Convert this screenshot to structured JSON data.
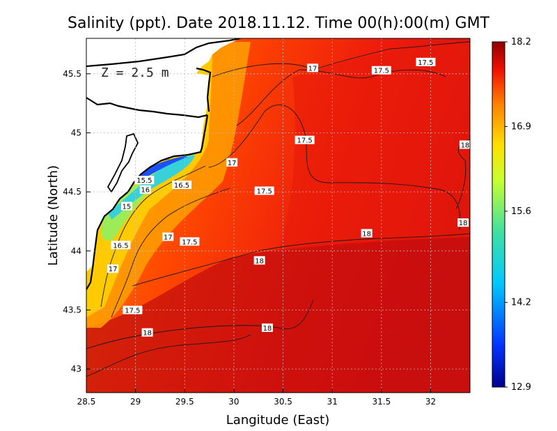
{
  "title": "Salinity (ppt). Date 2018.11.12. Time 00(h):00(m) GMT",
  "depth_label": "Z = 2.5 m",
  "x_axis": {
    "label": "Langitude (East)",
    "ticks": [
      "28.5",
      "29",
      "29.5",
      "30",
      "30.5",
      "31",
      "31.5",
      "32"
    ]
  },
  "y_axis": {
    "label": "Latitude (North)",
    "ticks": [
      "45.5",
      "45",
      "44.5",
      "44",
      "43.5",
      "43"
    ]
  },
  "colorbar": {
    "ticks": [
      "18.2",
      "16.9",
      "15.6",
      "14.2",
      "12.9"
    ],
    "min": 12.9,
    "max": 18.2
  },
  "map_extent": {
    "lon": [
      28.5,
      32.4
    ],
    "lat": [
      42.8,
      45.8
    ]
  },
  "colors": {
    "land": "#ffffff",
    "coast": "#000000",
    "contour": "#1a1a1a",
    "grid": "#c8c8c8"
  },
  "contour_labels": [
    {
      "text": "17.5",
      "lon": 31.95,
      "lat": 45.6
    },
    {
      "text": "17",
      "lon": 30.8,
      "lat": 45.55
    },
    {
      "text": "17.5",
      "lon": 31.5,
      "lat": 45.53
    },
    {
      "text": "17.5",
      "lon": 30.72,
      "lat": 44.94
    },
    {
      "text": "18",
      "lon": 32.35,
      "lat": 44.9
    },
    {
      "text": "17",
      "lon": 29.98,
      "lat": 44.75
    },
    {
      "text": "15.5",
      "lon": 29.09,
      "lat": 44.6
    },
    {
      "text": "16.5",
      "lon": 29.47,
      "lat": 44.56
    },
    {
      "text": "16",
      "lon": 29.1,
      "lat": 44.52
    },
    {
      "text": "17.5",
      "lon": 30.31,
      "lat": 44.51
    },
    {
      "text": "15",
      "lon": 28.91,
      "lat": 44.38
    },
    {
      "text": "18",
      "lon": 32.33,
      "lat": 44.24
    },
    {
      "text": "18",
      "lon": 31.35,
      "lat": 44.15
    },
    {
      "text": "17",
      "lon": 29.33,
      "lat": 44.12
    },
    {
      "text": "17.5",
      "lon": 29.55,
      "lat": 44.08
    },
    {
      "text": "16.5",
      "lon": 28.85,
      "lat": 44.05
    },
    {
      "text": "18",
      "lon": 30.26,
      "lat": 43.92
    },
    {
      "text": "17",
      "lon": 28.77,
      "lat": 43.85
    },
    {
      "text": "17.5",
      "lon": 28.97,
      "lat": 43.5
    },
    {
      "text": "18",
      "lon": 30.34,
      "lat": 43.35
    },
    {
      "text": "18",
      "lon": 29.12,
      "lat": 43.31
    }
  ]
}
